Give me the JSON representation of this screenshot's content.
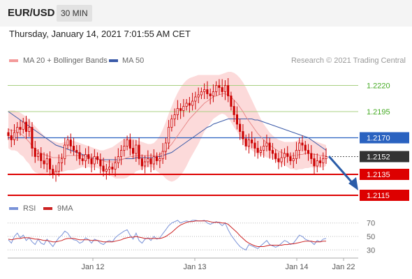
{
  "header": {
    "pair": "EUR/USD",
    "timeframe": "30 MIN",
    "datetime": "Thursday, January 14, 2021 7:01:55 AM CET"
  },
  "legend_top": {
    "bollinger_label": "MA 20 + Bollinger Bands",
    "ma50_label": "MA 50",
    "copyright": "Research © 2021 Trading Central"
  },
  "legend_rsi": {
    "rsi_label": "RSI",
    "ma9_label": "9MA"
  },
  "colors": {
    "candle": "#cc0000",
    "bollinger_fill": "#fcdada",
    "ma20": "#e88a8a",
    "ma50": "#3a5aa8",
    "resistance": "#a8d080",
    "resistance_text": "#44aa22",
    "pivot": "#2a62c0",
    "support": "#dd0000",
    "current_bg": "#333333",
    "rsi": "#7a93d8",
    "rsi_ma": "#cc2222",
    "arrow": "#2a5ca8"
  },
  "chart_data": {
    "type": "line",
    "title": "EUR/USD",
    "timeframe": "30 MIN",
    "x_ticks": [
      "Jan 12",
      "Jan 13",
      "Jan 14",
      "Jan 22"
    ],
    "ylim": [
      1.2113,
      1.2235
    ],
    "levels": [
      {
        "value": 1.222,
        "label": "1.2220",
        "kind": "resistance"
      },
      {
        "value": 1.2195,
        "label": "1.2195",
        "kind": "resistance"
      },
      {
        "value": 1.217,
        "label": "1.2170",
        "kind": "pivot"
      },
      {
        "value": 1.2152,
        "label": "1.2152",
        "kind": "current"
      },
      {
        "value": 1.2135,
        "label": "1.2135",
        "kind": "support"
      },
      {
        "value": 1.2115,
        "label": "1.2115",
        "kind": "support"
      }
    ],
    "price_closes": [
      1.2172,
      1.2168,
      1.2175,
      1.218,
      1.2178,
      1.2185,
      1.2176,
      1.218,
      1.216,
      1.2152,
      1.2155,
      1.2148,
      1.2145,
      1.215,
      1.214,
      1.2135,
      1.2138,
      1.2146,
      1.215,
      1.2163,
      1.2168,
      1.2162,
      1.2158,
      1.2156,
      1.215,
      1.2148,
      1.2154,
      1.215,
      1.2145,
      1.2152,
      1.2149,
      1.2143,
      1.2138,
      1.214,
      1.2142,
      1.214,
      1.2146,
      1.2152,
      1.2158,
      1.2162,
      1.2168,
      1.216,
      1.2155,
      1.2163,
      1.215,
      1.2143,
      1.2147,
      1.215,
      1.2145,
      1.2152,
      1.2148,
      1.215,
      1.2157,
      1.2165,
      1.218,
      1.2188,
      1.2192,
      1.2198,
      1.2196,
      1.22,
      1.2203,
      1.2201,
      1.2205,
      1.2209,
      1.2211,
      1.2214,
      1.2216,
      1.2212,
      1.221,
      1.2214,
      1.222,
      1.2218,
      1.2214,
      1.222,
      1.221,
      1.22,
      1.2192,
      1.2183,
      1.2176,
      1.2169,
      1.2162,
      1.2168,
      1.2165,
      1.216,
      1.2156,
      1.2158,
      1.2162,
      1.2165,
      1.2158,
      1.2155,
      1.215,
      1.2147,
      1.2151,
      1.2155,
      1.2152,
      1.2148,
      1.215,
      1.2158,
      1.2165,
      1.2163,
      1.2158,
      1.2155,
      1.215,
      1.2143,
      1.2148,
      1.2146,
      1.215,
      1.2152
    ],
    "ma20": [
      1.2178,
      1.2177,
      1.2177,
      1.2176,
      1.2174,
      1.2172,
      1.2169,
      1.2166,
      1.2162,
      1.2159,
      1.2157,
      1.2155,
      1.2154,
      1.2153,
      1.2152,
      1.2151,
      1.2151,
      1.2151,
      1.2151,
      1.2152,
      1.2153,
      1.2153,
      1.2153,
      1.2153,
      1.2153,
      1.2153,
      1.2152,
      1.2152,
      1.2151,
      1.2151,
      1.215,
      1.2149,
      1.2148,
      1.2147,
      1.2147,
      1.2147,
      1.2147,
      1.2148,
      1.2149,
      1.215,
      1.2151,
      1.2152,
      1.2152,
      1.2153,
      1.2153,
      1.2153,
      1.2153,
      1.2153,
      1.2153,
      1.2153,
      1.2153,
      1.2154,
      1.2156,
      1.2158,
      1.2161,
      1.2164,
      1.2168,
      1.2172,
      1.2176,
      1.218,
      1.2184,
      1.2188,
      1.2191,
      1.2194,
      1.2197,
      1.22,
      1.2203,
      1.2205,
      1.2207,
      1.2209,
      1.221,
      1.2211,
      1.2212,
      1.2212,
      1.2211,
      1.2209,
      1.2206,
      1.2203,
      1.2199,
      1.2195,
      1.219,
      1.2186,
      1.2182,
      1.2178,
      1.2174,
      1.2171,
      1.2168,
      1.2165,
      1.2163,
      1.2161,
      1.2159,
      1.2157,
      1.2156,
      1.2155,
      1.2154,
      1.2153,
      1.2153,
      1.2153,
      1.2154,
      1.2154,
      1.2155,
      1.2155,
      1.2155,
      1.2154,
      1.2154,
      1.2153,
      1.2153,
      1.2153
    ],
    "bb_upper": [
      1.2196,
      1.2196,
      1.2196,
      1.2195,
      1.2194,
      1.2192,
      1.219,
      1.2187,
      1.2184,
      1.2181,
      1.2178,
      1.2175,
      1.2172,
      1.217,
      1.2168,
      1.2167,
      1.2166,
      1.2165,
      1.2165,
      1.2166,
      1.2167,
      1.2167,
      1.2167,
      1.2166,
      1.2165,
      1.2164,
      1.2163,
      1.2162,
      1.2161,
      1.216,
      1.2159,
      1.2158,
      1.2158,
      1.2159,
      1.216,
      1.2161,
      1.2163,
      1.2165,
      1.2167,
      1.2169,
      1.217,
      1.217,
      1.2169,
      1.2168,
      1.2167,
      1.2166,
      1.2165,
      1.2164,
      1.2164,
      1.2165,
      1.2168,
      1.2172,
      1.2178,
      1.2185,
      1.2193,
      1.22,
      1.2207,
      1.2213,
      1.2218,
      1.2222,
      1.2225,
      1.2227,
      1.2228,
      1.2229,
      1.223,
      1.223,
      1.223,
      1.223,
      1.223,
      1.223,
      1.223,
      1.223,
      1.2231,
      1.2232,
      1.2233,
      1.2233,
      1.2232,
      1.223,
      1.2227,
      1.2223,
      1.2218,
      1.2212,
      1.2206,
      1.22,
      1.2194,
      1.2188,
      1.2183,
      1.2179,
      1.2175,
      1.2172,
      1.217,
      1.2168,
      1.2167,
      1.2166,
      1.2166,
      1.2166,
      1.2166,
      1.2167,
      1.2168,
      1.2168,
      1.2169,
      1.2169,
      1.2168,
      1.2167,
      1.2166,
      1.2165,
      1.2164,
      1.2163
    ],
    "bb_lower": [
      1.216,
      1.2158,
      1.2158,
      1.2157,
      1.2154,
      1.2152,
      1.2148,
      1.2145,
      1.214,
      1.2137,
      1.2136,
      1.2135,
      1.2136,
      1.2136,
      1.2136,
      1.2135,
      1.2136,
      1.2137,
      1.2137,
      1.2138,
      1.2139,
      1.2139,
      1.2139,
      1.214,
      1.2141,
      1.2142,
      1.2141,
      1.2142,
      1.2141,
      1.2142,
      1.2141,
      1.214,
      1.2138,
      1.2135,
      1.2134,
      1.2133,
      1.2131,
      1.2131,
      1.2131,
      1.2131,
      1.2132,
      1.2134,
      1.2135,
      1.2138,
      1.2139,
      1.214,
      1.2141,
      1.2142,
      1.2142,
      1.2141,
      1.2138,
      1.2136,
      1.2134,
      1.2131,
      1.2129,
      1.2128,
      1.2129,
      1.2131,
      1.2134,
      1.2138,
      1.2143,
      1.2149,
      1.2154,
      1.2159,
      1.2164,
      1.217,
      1.2176,
      1.218,
      1.2184,
      1.2188,
      1.219,
      1.2192,
      1.2193,
      1.2192,
      1.2189,
      1.2185,
      1.218,
      1.2176,
      1.2171,
      1.2167,
      1.2162,
      1.216,
      1.2158,
      1.2156,
      1.2154,
      1.2154,
      1.2153,
      1.2151,
      1.2151,
      1.215,
      1.2148,
      1.2146,
      1.2145,
      1.2144,
      1.2142,
      1.214,
      1.214,
      1.2139,
      1.214,
      1.214,
      1.2141,
      1.2141,
      1.2142,
      1.2141,
      1.2142,
      1.2141,
      1.2142,
      1.2143
    ],
    "ma50": [
      1.2195,
      1.2193,
      1.2191,
      1.2189,
      1.2187,
      1.2185,
      1.2183,
      1.2181,
      1.2179,
      1.2177,
      1.2175,
      1.2173,
      1.2171,
      1.2169,
      1.2167,
      1.2165,
      1.2163,
      1.2162,
      1.2161,
      1.216,
      1.2159,
      1.2158,
      1.2157,
      1.2156,
      1.2155,
      1.2154,
      1.2153,
      1.2152,
      1.2151,
      1.215,
      1.215,
      1.2149,
      1.2149,
      1.2149,
      1.2149,
      1.2149,
      1.2149,
      1.2149,
      1.2149,
      1.215,
      1.215,
      1.215,
      1.215,
      1.2151,
      1.2151,
      1.2151,
      1.2151,
      1.2151,
      1.2151,
      1.2151,
      1.2152,
      1.2152,
      1.2153,
      1.2154,
      1.2155,
      1.2156,
      1.2158,
      1.216,
      1.2162,
      1.2164,
      1.2166,
      1.2168,
      1.217,
      1.2172,
      1.2174,
      1.2176,
      1.2178,
      1.218,
      1.2181,
      1.2183,
      1.2184,
      1.2185,
      1.2186,
      1.2187,
      1.2188,
      1.2188,
      1.2188,
      1.2188,
      1.2188,
      1.2188,
      1.2188,
      1.2188,
      1.2188,
      1.2187,
      1.2187,
      1.2186,
      1.2185,
      1.2184,
      1.2183,
      1.2182,
      1.2181,
      1.218,
      1.2179,
      1.2178,
      1.2177,
      1.2176,
      1.2175,
      1.2174,
      1.2173,
      1.2172,
      1.2171,
      1.217,
      1.2168,
      1.2166,
      1.2164,
      1.2162,
      1.216,
      1.2158
    ],
    "rsi_ticks": [
      30,
      50,
      70
    ],
    "rsi_ylim": [
      22,
      78
    ],
    "rsi": [
      45,
      40,
      50,
      55,
      48,
      52,
      44,
      48,
      42,
      38,
      46,
      40,
      38,
      46,
      40,
      35,
      42,
      48,
      52,
      58,
      55,
      48,
      45,
      44,
      40,
      42,
      48,
      45,
      40,
      46,
      44,
      40,
      38,
      42,
      44,
      42,
      48,
      52,
      55,
      58,
      60,
      52,
      46,
      55,
      44,
      40,
      46,
      48,
      44,
      50,
      46,
      48,
      54,
      60,
      66,
      70,
      72,
      74,
      70,
      72,
      73,
      72,
      74,
      74,
      73,
      73,
      74,
      70,
      68,
      70,
      72,
      70,
      66,
      70,
      60,
      52,
      46,
      40,
      35,
      32,
      30,
      38,
      36,
      34,
      32,
      36,
      40,
      44,
      38,
      36,
      34,
      36,
      40,
      44,
      42,
      38,
      40,
      46,
      52,
      50,
      46,
      44,
      42,
      38,
      44,
      42,
      46,
      47
    ],
    "rsi_ma": [
      46,
      45,
      46,
      47,
      47,
      48,
      48,
      48,
      47,
      46,
      46,
      45,
      44,
      44,
      43,
      42,
      42,
      43,
      44,
      46,
      47,
      47,
      47,
      46,
      45,
      45,
      45,
      45,
      44,
      44,
      44,
      43,
      42,
      42,
      42,
      42,
      43,
      44,
      45,
      47,
      48,
      49,
      49,
      50,
      49,
      48,
      47,
      47,
      47,
      47,
      47,
      47,
      48,
      50,
      53,
      56,
      60,
      64,
      67,
      69,
      71,
      72,
      72,
      73,
      73,
      73,
      73,
      73,
      72,
      71,
      71,
      71,
      70,
      70,
      68,
      64,
      60,
      56,
      51,
      47,
      43,
      40,
      38,
      36,
      35,
      35,
      35,
      36,
      37,
      37,
      37,
      37,
      37,
      38,
      38,
      39,
      39,
      40,
      41,
      42,
      43,
      43,
      43,
      42,
      42,
      42,
      43,
      43
    ]
  }
}
